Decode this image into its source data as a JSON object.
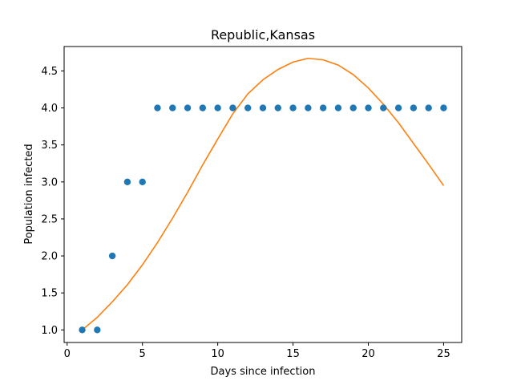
{
  "chart_data": {
    "type": "scatter",
    "title": "Republic,Kansas",
    "xlabel": "Days since infection",
    "ylabel": "Population infected",
    "xlim": [
      -0.2,
      26.2
    ],
    "ylim": [
      0.83,
      4.83
    ],
    "xticks": [
      0,
      5,
      10,
      15,
      20,
      25
    ],
    "xtick_labels": [
      "0",
      "5",
      "10",
      "15",
      "20",
      "25"
    ],
    "yticks": [
      1.0,
      1.5,
      2.0,
      2.5,
      3.0,
      3.5,
      4.0,
      4.5
    ],
    "ytick_labels": [
      "1.0",
      "1.5",
      "2.0",
      "2.5",
      "3.0",
      "3.5",
      "4.0",
      "4.5"
    ],
    "grid": false,
    "series": [
      {
        "kind": "scatter",
        "color": "#1f77b4",
        "x": [
          1,
          2,
          3,
          4,
          5,
          6,
          7,
          8,
          9,
          10,
          11,
          12,
          13,
          14,
          15,
          16,
          17,
          18,
          19,
          20,
          21,
          22,
          23,
          24,
          25
        ],
        "y": [
          1,
          1,
          2,
          3,
          3,
          4,
          4,
          4,
          4,
          4,
          4,
          4,
          4,
          4,
          4,
          4,
          4,
          4,
          4,
          4,
          4,
          4,
          4,
          4,
          4
        ]
      },
      {
        "kind": "line",
        "color": "#ff7f0e",
        "x": [
          1,
          2,
          3,
          4,
          5,
          6,
          7,
          8,
          9,
          10,
          11,
          12,
          13,
          14,
          15,
          16,
          17,
          18,
          19,
          20,
          21,
          22,
          23,
          24,
          25
        ],
        "y": [
          1.0,
          1.17,
          1.38,
          1.61,
          1.88,
          2.18,
          2.51,
          2.86,
          3.23,
          3.58,
          3.92,
          4.19,
          4.38,
          4.52,
          4.62,
          4.67,
          4.65,
          4.58,
          4.45,
          4.27,
          4.05,
          3.8,
          3.52,
          3.24,
          2.95
        ]
      }
    ]
  }
}
